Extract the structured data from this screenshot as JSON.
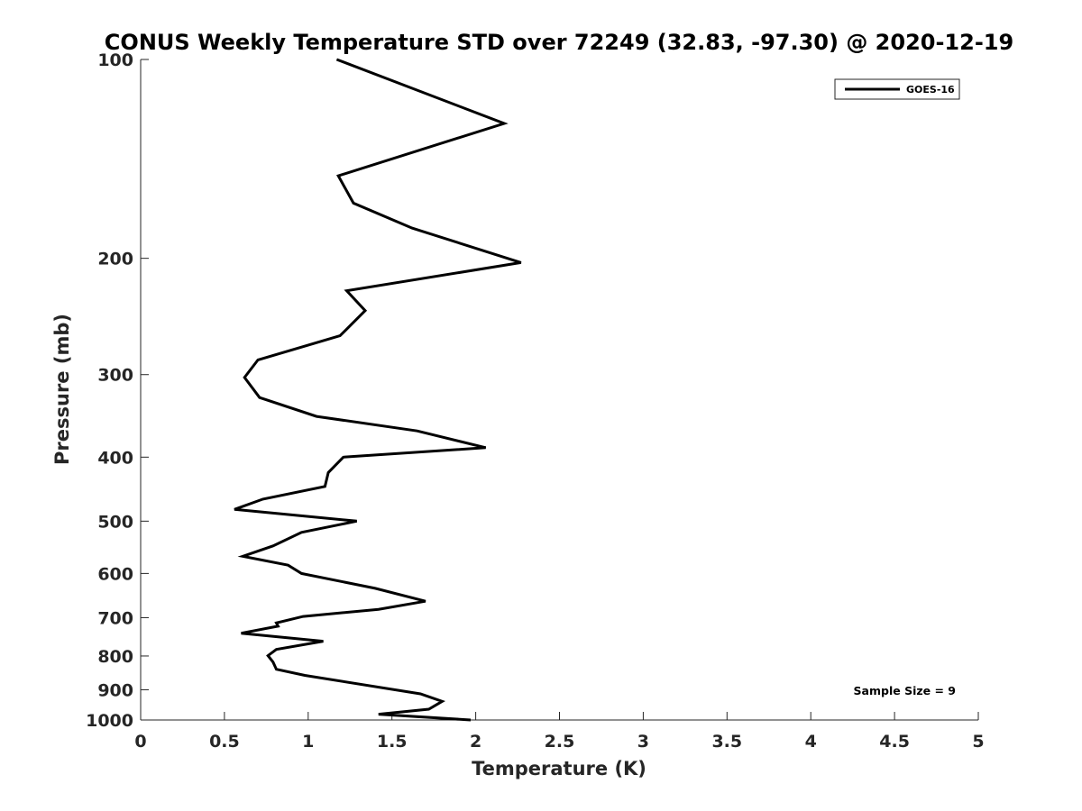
{
  "chart_data": {
    "type": "line",
    "title": "CONUS Weekly Temperature STD over 72249 (32.83, -97.30) @ 2020-12-19",
    "xlabel": "Temperature (K)",
    "ylabel": "Pressure (mb)",
    "xlim": [
      0,
      5
    ],
    "ylim": [
      100,
      1000
    ],
    "y_scale": "log",
    "y_reversed": true,
    "x_ticks": [
      "0",
      "0.5",
      "1",
      "1.5",
      "2",
      "2.5",
      "3",
      "3.5",
      "4",
      "4.5",
      "5"
    ],
    "y_ticks": [
      "100",
      "200",
      "300",
      "400",
      "500",
      "600",
      "700",
      "800",
      "900",
      "1000"
    ],
    "grid": false,
    "legend": {
      "position": "top-right",
      "entries": [
        "GOES-16"
      ]
    },
    "annotation": "Sample Size = 9",
    "series": [
      {
        "name": "GOES-16",
        "color": "#000000",
        "x": [
          1.17,
          2.17,
          1.18,
          1.27,
          1.62,
          2.27,
          1.23,
          1.34,
          1.19,
          0.7,
          0.62,
          0.71,
          1.05,
          1.65,
          2.06,
          1.21,
          1.12,
          1.1,
          0.73,
          0.56,
          1.29,
          0.96,
          0.79,
          0.61,
          0.88,
          0.96,
          1.4,
          1.7,
          1.42,
          0.97,
          0.81,
          0.82,
          0.6,
          1.09,
          0.81,
          0.76,
          0.79,
          0.81,
          0.98,
          1.67,
          1.8,
          1.72,
          1.42,
          1.97
        ],
        "y": [
          100,
          125,
          150,
          165,
          180,
          203,
          224,
          240,
          262,
          285,
          303,
          325,
          347,
          365,
          387,
          400,
          422,
          443,
          463,
          480,
          500,
          520,
          545,
          565,
          583,
          600,
          632,
          661,
          680,
          697,
          713,
          721,
          739,
          760,
          782,
          799,
          817,
          838,
          856,
          913,
          937,
          963,
          980,
          1000
        ]
      }
    ]
  }
}
